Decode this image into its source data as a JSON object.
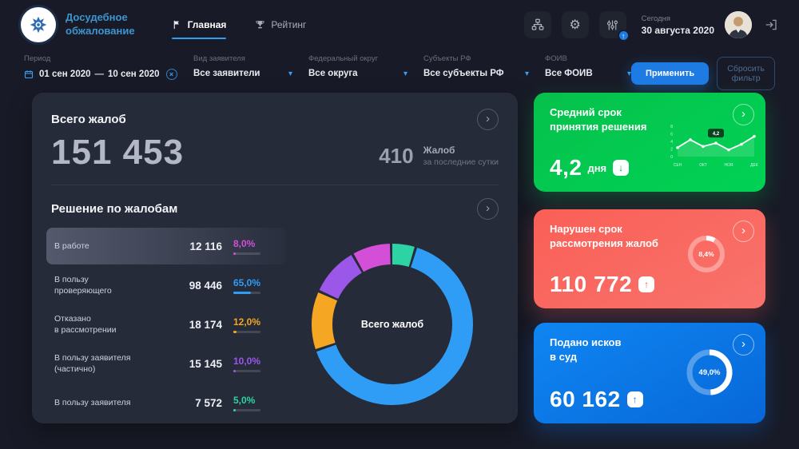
{
  "header": {
    "app_title_line1": "Досудебное",
    "app_title_line2": "обжалование",
    "tabs": [
      {
        "label": "Главная",
        "active": true
      },
      {
        "label": "Рейтинг",
        "active": false
      }
    ],
    "today_label": "Сегодня",
    "today_date": "30 августа 2020"
  },
  "icons": {
    "gear": "⚙",
    "chevron_right": "›",
    "chevron_down": "▾",
    "close": "×",
    "up_arrow": "↑",
    "down_arrow": "↓"
  },
  "filters": {
    "period": {
      "label": "Период",
      "from": "01 сен 2020",
      "separator": "—",
      "to": "10 сен 2020"
    },
    "applicant": {
      "label": "Вид заявителя",
      "value": "Все заявители"
    },
    "district": {
      "label": "Федеральный округ",
      "value": "Все округа"
    },
    "subjects": {
      "label": "Субъекты РФ",
      "value": "Все субъекты РФ"
    },
    "foiv": {
      "label": "ФОИВ",
      "value": "Все ФОИВ"
    },
    "apply": "Применить",
    "reset": "Сбросить фильтр"
  },
  "totals": {
    "title": "Всего жалоб",
    "value": "151 453",
    "daily_value": "410",
    "daily_unit": "Жалоб",
    "daily_caption": "за последние сутки"
  },
  "decisions": {
    "title": "Решение по жалобам",
    "center_label": "Всего жалоб",
    "rows": [
      {
        "lines": [
          "В работе"
        ],
        "value": "12 116",
        "percent": "8,0%",
        "pct": 8,
        "color": "#d44fd8",
        "highlight": true
      },
      {
        "lines": [
          "В пользу",
          "проверяющего"
        ],
        "value": "98 446",
        "percent": "65,0%",
        "pct": 65,
        "color": "#2f9df5",
        "highlight": false
      },
      {
        "lines": [
          "Отказано",
          "в рассмотрении"
        ],
        "value": "18 174",
        "percent": "12,0%",
        "pct": 12,
        "color": "#f5a623",
        "highlight": false
      },
      {
        "lines": [
          "В пользу заявителя",
          "(частично)"
        ],
        "value": "15 145",
        "percent": "10,0%",
        "pct": 10,
        "color": "#9a57e8",
        "highlight": false
      },
      {
        "lines": [
          "В пользу заявителя"
        ],
        "value": "7 572",
        "percent": "5,0%",
        "pct": 5,
        "color": "#2ed3a4",
        "highlight": false
      }
    ],
    "donut_order": [
      4,
      1,
      2,
      3,
      0
    ]
  },
  "cards": {
    "avg_term": {
      "title_lines": [
        "Средний срок",
        "принятия решения"
      ],
      "value": "4,2",
      "unit": "дня",
      "trend": "down",
      "accent": "#00c44c",
      "spark": {
        "x_labels": [
          "СЕН",
          "ОКТ",
          "НОЯ",
          "ДЕК"
        ],
        "y_ticks": [
          "8",
          "6",
          "4",
          "2",
          "0"
        ],
        "values": [
          3.8,
          4.5,
          3.9,
          4.2,
          3.6,
          4.1,
          4.8
        ],
        "label": "4,2",
        "label_index": 3
      }
    },
    "overdue": {
      "title_lines": [
        "Нарушен срок",
        "рассмотрения жалоб"
      ],
      "value": "110 772",
      "trend": "up",
      "percent": "8,4%",
      "pct": 8.4,
      "accent": "#f96057"
    },
    "lawsuits": {
      "title_lines": [
        "Подано исков",
        "в суд"
      ],
      "value": "60 162",
      "trend": "up",
      "percent": "49,0%",
      "pct": 49,
      "accent": "#0b79e8"
    }
  },
  "chart_data": [
    {
      "type": "pie",
      "title": "Всего жалоб — решение по жалобам",
      "labels": [
        "В работе",
        "В пользу проверяющего",
        "Отказано в рассмотрении",
        "В пользу заявителя (частично)",
        "В пользу заявителя"
      ],
      "values": [
        8,
        65,
        12,
        10,
        5
      ],
      "unit": "%",
      "colors": [
        "#d44fd8",
        "#2f9df5",
        "#f5a623",
        "#9a57e8",
        "#2ed3a4"
      ]
    },
    {
      "type": "line",
      "title": "Средний срок принятия решения, дни",
      "x": [
        "СЕН",
        "ОКТ",
        "НОЯ",
        "ДЕК"
      ],
      "values": [
        3.8,
        4.5,
        3.9,
        4.2,
        3.6,
        4.1,
        4.8
      ],
      "highlight_value": 4.2
    },
    {
      "type": "pie",
      "title": "Нарушен срок рассмотрения жалоб",
      "labels": [
        "нарушен срок",
        "остальные"
      ],
      "values": [
        8.4,
        91.6
      ],
      "unit": "%"
    },
    {
      "type": "pie",
      "title": "Подано исков в суд",
      "labels": [
        "подано",
        "остальные"
      ],
      "values": [
        49,
        51
      ],
      "unit": "%"
    }
  ]
}
